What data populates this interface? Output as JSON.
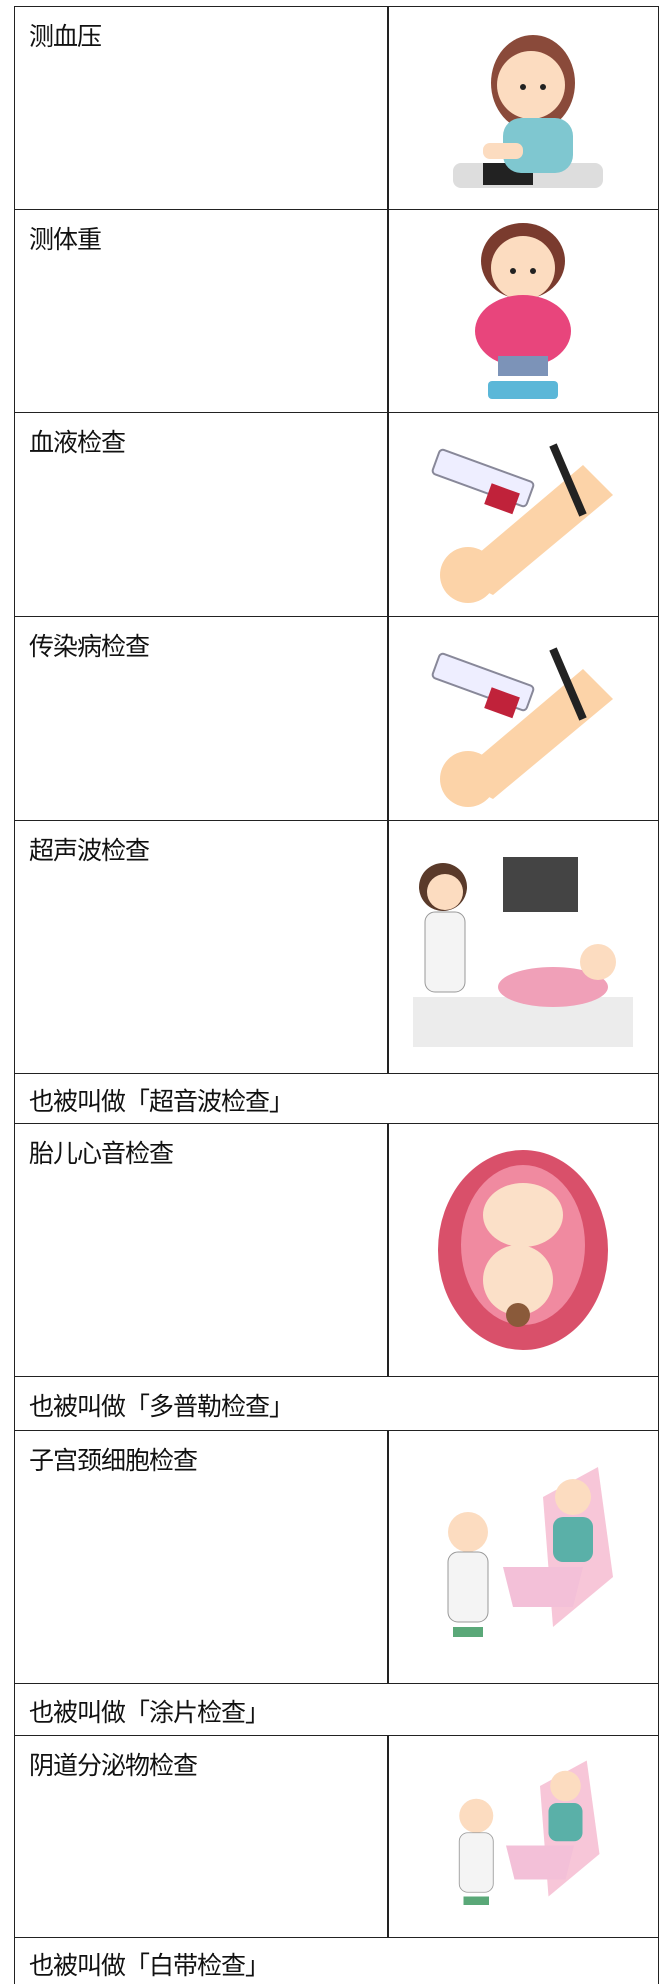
{
  "table": {
    "rows": [
      {
        "name": "测血压"
      },
      {
        "name": "测体重"
      },
      {
        "name": "血液检查"
      },
      {
        "name": "传染病检查"
      },
      {
        "name": "超声波检查",
        "note": "也被叫做「超音波检查」"
      },
      {
        "name": "胎儿心音检查",
        "note": "也被叫做「多普勒检查」"
      },
      {
        "name": "子宫颈细胞检查",
        "note": "也被叫做「涂片检查」"
      },
      {
        "name": "阴道分泌物检查",
        "note": "也被叫做「白带检查」"
      }
    ]
  }
}
